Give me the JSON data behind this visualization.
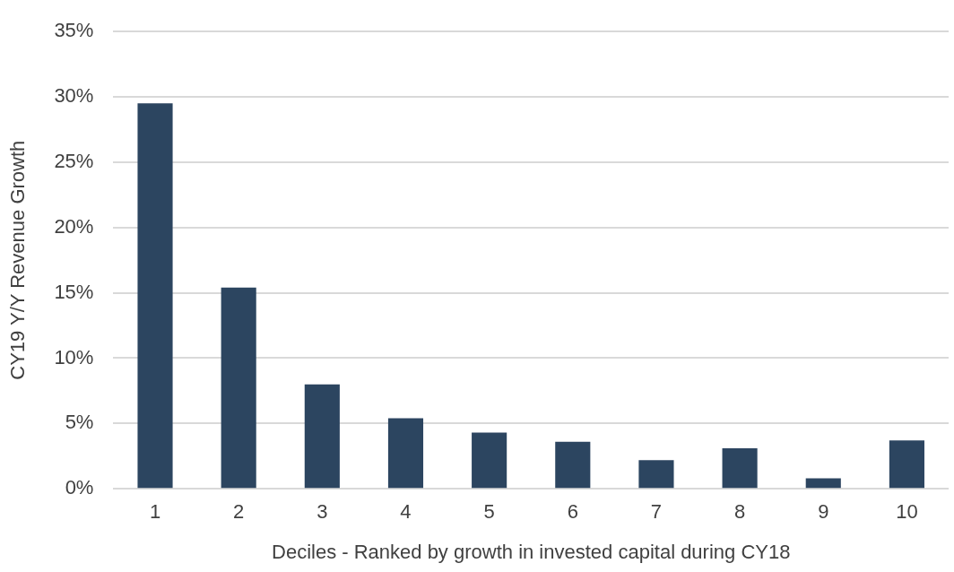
{
  "chart_data": {
    "type": "bar",
    "xlabel": "Deciles - Ranked by growth in invested capital during CY18",
    "ylabel": "CY19 Y/Y Revenue Growth",
    "categories": [
      "1",
      "2",
      "3",
      "4",
      "5",
      "6",
      "7",
      "8",
      "9",
      "10"
    ],
    "values": [
      29.5,
      15.4,
      8.0,
      5.4,
      4.3,
      3.6,
      2.2,
      3.1,
      0.8,
      3.7
    ],
    "color": "#2c4560",
    "ylim": [
      0,
      35
    ],
    "yticks": [
      {
        "value": 0,
        "label": "0%"
      },
      {
        "value": 5,
        "label": "5%"
      },
      {
        "value": 10,
        "label": "10%"
      },
      {
        "value": 15,
        "label": "15%"
      },
      {
        "value": 20,
        "label": "20%"
      },
      {
        "value": 25,
        "label": "25%"
      },
      {
        "value": 30,
        "label": "30%"
      },
      {
        "value": 35,
        "label": "35%"
      }
    ],
    "grid": "y",
    "legend": false
  }
}
